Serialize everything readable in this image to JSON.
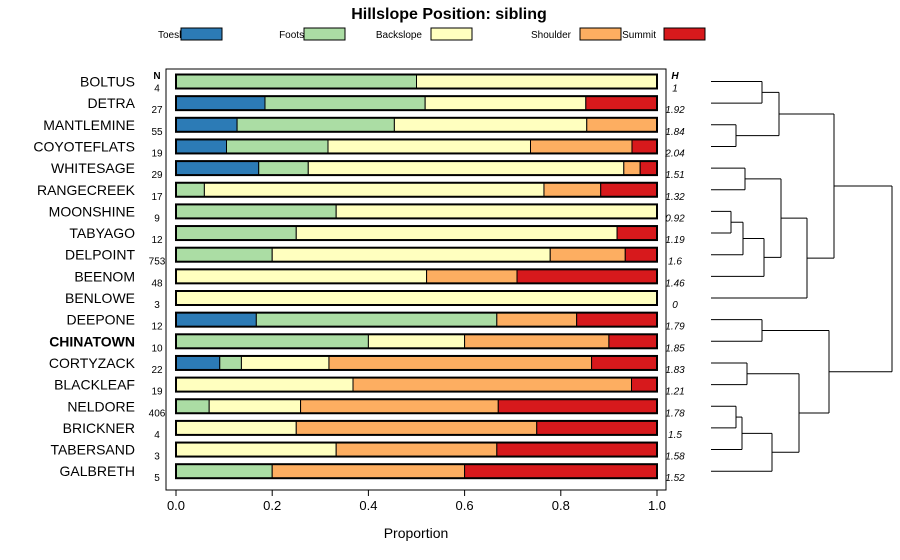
{
  "chart_data": {
    "type": "bar",
    "orientation": "horizontal",
    "stacked": true,
    "title": "Hillslope Position: sibling",
    "xlabel": "Proportion",
    "ylabel": "",
    "xlim": [
      0,
      1
    ],
    "x_ticks": [
      "0.0",
      "0.2",
      "0.4",
      "0.6",
      "0.8",
      "1.0"
    ],
    "n_header": "N",
    "h_header": "H",
    "legend_placement": "top",
    "highlighted_category": "CHINATOWN",
    "classes": [
      {
        "name": "Toeslope",
        "color": "#2c7bb6"
      },
      {
        "name": "Footslope",
        "color": "#abdda4"
      },
      {
        "name": "Backslope",
        "color": "#ffffbf"
      },
      {
        "name": "Shoulder",
        "color": "#fdae61"
      },
      {
        "name": "Summit",
        "color": "#d7191c"
      }
    ],
    "rows": [
      {
        "name": "BOLTUS",
        "n": "4",
        "h": "1",
        "values": [
          0,
          0.5,
          0.5,
          0,
          0
        ]
      },
      {
        "name": "DETRA",
        "n": "27",
        "h": "1.92",
        "values": [
          0.185,
          0.333,
          0.334,
          0,
          0.148
        ]
      },
      {
        "name": "MANTLEMINE",
        "n": "55",
        "h": "1.84",
        "values": [
          0.127,
          0.327,
          0.4,
          0.146,
          0
        ]
      },
      {
        "name": "COYOTEFLATS",
        "n": "19",
        "h": "2.04",
        "values": [
          0.105,
          0.211,
          0.421,
          0.211,
          0.052
        ]
      },
      {
        "name": "WHITESAGE",
        "n": "29",
        "h": "1.51",
        "values": [
          0.172,
          0.103,
          0.656,
          0.034,
          0.035
        ]
      },
      {
        "name": "RANGECREEK",
        "n": "17",
        "h": "1.32",
        "values": [
          0,
          0.059,
          0.706,
          0.118,
          0.117
        ]
      },
      {
        "name": "MOONSHINE",
        "n": "9",
        "h": "0.92",
        "values": [
          0,
          0.333,
          0.667,
          0,
          0
        ]
      },
      {
        "name": "TABYAGO",
        "n": "12",
        "h": "1.19",
        "values": [
          0,
          0.25,
          0.667,
          0,
          0.083
        ]
      },
      {
        "name": "DELPOINT",
        "n": "753",
        "h": "1.6",
        "values": [
          0,
          0.2,
          0.578,
          0.156,
          0.066
        ]
      },
      {
        "name": "BEENOM",
        "n": "48",
        "h": "1.46",
        "values": [
          0,
          0,
          0.521,
          0.188,
          0.291
        ]
      },
      {
        "name": "BENLOWE",
        "n": "3",
        "h": "0",
        "values": [
          0,
          0,
          1,
          0,
          0
        ]
      },
      {
        "name": "DEEPONE",
        "n": "12",
        "h": "1.79",
        "values": [
          0.167,
          0.5,
          0,
          0.166,
          0.167
        ]
      },
      {
        "name": "CHINATOWN",
        "n": "10",
        "h": "1.85",
        "values": [
          0,
          0.4,
          0.2,
          0.3,
          0.1
        ]
      },
      {
        "name": "CORTYZACK",
        "n": "22",
        "h": "1.83",
        "values": [
          0.091,
          0.045,
          0.182,
          0.546,
          0.136
        ]
      },
      {
        "name": "BLACKLEAF",
        "n": "19",
        "h": "1.21",
        "values": [
          0,
          0,
          0.368,
          0.579,
          0.053
        ]
      },
      {
        "name": "NELDORE",
        "n": "406",
        "h": "1.78",
        "values": [
          0,
          0.069,
          0.19,
          0.411,
          0.33
        ]
      },
      {
        "name": "BRICKNER",
        "n": "4",
        "h": "1.5",
        "values": [
          0,
          0,
          0.25,
          0.5,
          0.25
        ]
      },
      {
        "name": "TABERSAND",
        "n": "3",
        "h": "1.58",
        "values": [
          0,
          0,
          0.333,
          0.334,
          0.333
        ]
      },
      {
        "name": "GALBRETH",
        "n": "5",
        "h": "1.52",
        "values": [
          0,
          0.2,
          0,
          0.4,
          0.4
        ]
      }
    ]
  }
}
